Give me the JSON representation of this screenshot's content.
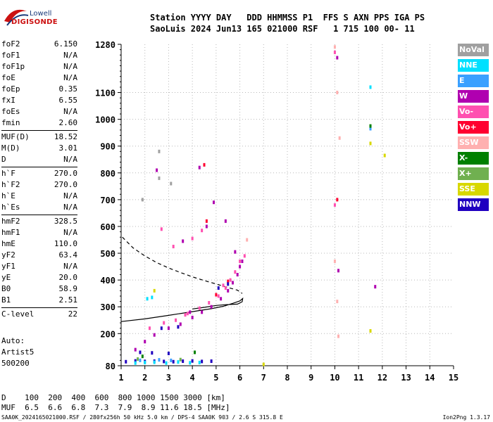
{
  "logo": {
    "text_top": "Lowell",
    "text_bottom": "DIGISONDE"
  },
  "header": {
    "line1": "Station YYYY DAY   DDD HHMMSS P1  FFS S AXN PPS IGA PS",
    "line2": "SaoLuis 2024 Jun13 165 021000 RSF   1 715 100 00- 11"
  },
  "params": [
    {
      "name": "foF2",
      "value": "6.150"
    },
    {
      "name": "foF1",
      "value": "N/A"
    },
    {
      "name": "foF1p",
      "value": "N/A"
    },
    {
      "name": "foE",
      "value": "N/A"
    },
    {
      "name": "foEp",
      "value": "0.35"
    },
    {
      "name": "fxI",
      "value": "6.55"
    },
    {
      "name": "foEs",
      "value": "N/A"
    },
    {
      "name": "fmin",
      "value": "2.60"
    },
    {
      "name": "MUF(D)",
      "value": "18.52"
    },
    {
      "name": "M(D)",
      "value": "3.01"
    },
    {
      "name": "D",
      "value": "N/A"
    },
    {
      "name": "h`F",
      "value": "270.0"
    },
    {
      "name": "h`F2",
      "value": "270.0"
    },
    {
      "name": "h`E",
      "value": "N/A"
    },
    {
      "name": "h`Es",
      "value": "N/A"
    },
    {
      "name": "hmF2",
      "value": "328.5"
    },
    {
      "name": "hmF1",
      "value": "N/A"
    },
    {
      "name": "hmE",
      "value": "110.0"
    },
    {
      "name": "yF2",
      "value": "63.4"
    },
    {
      "name": "yF1",
      "value": "N/A"
    },
    {
      "name": "yE",
      "value": "20.0"
    },
    {
      "name": "B0",
      "value": "58.9"
    },
    {
      "name": "B1",
      "value": "2.51"
    },
    {
      "name": "C-level",
      "value": "22"
    }
  ],
  "auto": {
    "label": "Auto:",
    "name": "Artist5",
    "version": "500200"
  },
  "legend": [
    {
      "label": "NoVal",
      "color": "#a0a0a0"
    },
    {
      "label": "NNE",
      "color": "#00e0ff"
    },
    {
      "label": "E",
      "color": "#3aa0ff"
    },
    {
      "label": "W",
      "color": "#b000b0"
    },
    {
      "label": "Vo-",
      "color": "#ff50b0"
    },
    {
      "label": "Vo+",
      "color": "#ff0030"
    },
    {
      "label": "SSW",
      "color": "#ffb0b0"
    },
    {
      "label": "X-",
      "color": "#008000"
    },
    {
      "label": "X+",
      "color": "#70b050"
    },
    {
      "label": "SSE",
      "color": "#d8d800"
    },
    {
      "label": "NNW",
      "color": "#2000c0"
    }
  ],
  "bottom": {
    "d_line": "D    100  200  400  600  800 1000 1500 3000 [km]",
    "muf_line": "MUF  6.5  6.6  6.8  7.3  7.9  8.9 11.6 18.5 [MHz]",
    "footer": "SAA0K_2024165021000.RSF / 280fx256h 50 kHz 5.0 km / DPS-4 SAA0K 903 / 2.6 S 315.8 E",
    "version": "Ion2Png 1.3.17"
  },
  "chart_data": {
    "type": "scatter",
    "title": "",
    "xlabel": "",
    "ylabel": "",
    "xlim": [
      1,
      15
    ],
    "ylim": [
      80,
      1280
    ],
    "x_ticks": [
      "1",
      "2",
      "3",
      "4",
      "5",
      "6",
      "7",
      "8",
      "9",
      "10",
      "11",
      "12",
      "13",
      "14",
      "15"
    ],
    "y_ticks": [
      "80",
      "200",
      "300",
      "400",
      "500",
      "600",
      "700",
      "800",
      "900",
      "1000",
      "1100",
      "1280"
    ],
    "grid": "dashed",
    "series": [
      {
        "name": "W",
        "color": "#b000b0",
        "points": [
          [
            2.0,
            170
          ],
          [
            2.4,
            195
          ],
          [
            3.0,
            220
          ],
          [
            3.5,
            235
          ],
          [
            4.0,
            260
          ],
          [
            4.4,
            280
          ],
          [
            4.8,
            300
          ],
          [
            5.2,
            330
          ],
          [
            5.5,
            360
          ],
          [
            5.7,
            390
          ],
          [
            5.9,
            420
          ],
          [
            6.0,
            450
          ],
          [
            5.4,
            620
          ],
          [
            4.6,
            600
          ],
          [
            3.6,
            545
          ],
          [
            2.5,
            810
          ],
          [
            4.3,
            820
          ],
          [
            5.8,
            505
          ],
          [
            10.1,
            1230
          ],
          [
            10.15,
            435
          ],
          [
            11.7,
            375
          ],
          [
            1.6,
            140
          ],
          [
            4.9,
            690
          ],
          [
            3.9,
            280
          ],
          [
            6.1,
            470
          ]
        ]
      },
      {
        "name": "Vo-",
        "color": "#ff50b0",
        "points": [
          [
            2.2,
            220
          ],
          [
            2.8,
            240
          ],
          [
            3.3,
            250
          ],
          [
            3.8,
            275
          ],
          [
            4.3,
            295
          ],
          [
            4.7,
            315
          ],
          [
            5.1,
            340
          ],
          [
            5.4,
            370
          ],
          [
            5.6,
            400
          ],
          [
            5.8,
            430
          ],
          [
            6.0,
            470
          ],
          [
            4.0,
            555
          ],
          [
            3.2,
            525
          ],
          [
            2.7,
            590
          ],
          [
            4.4,
            585
          ],
          [
            10.0,
            1250
          ],
          [
            10.0,
            680
          ],
          [
            6.2,
            490
          ],
          [
            3.7,
            270
          ],
          [
            5.3,
            380
          ]
        ]
      },
      {
        "name": "Vo+",
        "color": "#ff0030",
        "points": [
          [
            4.5,
            830
          ],
          [
            4.6,
            620
          ],
          [
            5.0,
            345
          ],
          [
            5.5,
            395
          ],
          [
            10.1,
            700
          ]
        ]
      },
      {
        "name": "NNW",
        "color": "#2000c0",
        "points": [
          [
            1.2,
            95
          ],
          [
            1.6,
            98
          ],
          [
            2.0,
            96
          ],
          [
            2.4,
            97
          ],
          [
            2.8,
            96
          ],
          [
            3.2,
            95
          ],
          [
            3.6,
            97
          ],
          [
            4.0,
            98
          ],
          [
            4.4,
            96
          ],
          [
            4.8,
            97
          ],
          [
            1.8,
            130
          ],
          [
            2.3,
            128
          ],
          [
            3.0,
            126
          ],
          [
            2.7,
            220
          ],
          [
            3.4,
            225
          ],
          [
            5.1,
            370
          ],
          [
            5.5,
            385
          ]
        ]
      },
      {
        "name": "NNE",
        "color": "#00e0ff",
        "points": [
          [
            1.6,
            90
          ],
          [
            2.0,
            92
          ],
          [
            2.4,
            93
          ],
          [
            2.9,
            90
          ],
          [
            3.4,
            94
          ],
          [
            3.9,
            91
          ],
          [
            4.3,
            92
          ],
          [
            2.1,
            330
          ],
          [
            2.3,
            335
          ],
          [
            11.5,
            1120
          ]
        ]
      },
      {
        "name": "E",
        "color": "#3aa0ff",
        "points": [
          [
            1.8,
            100
          ],
          [
            2.6,
            102
          ],
          [
            3.1,
            100
          ],
          [
            11.5,
            965
          ]
        ]
      },
      {
        "name": "SSW",
        "color": "#ffb0b0",
        "points": [
          [
            10.0,
            1270
          ],
          [
            10.0,
            470
          ],
          [
            10.1,
            1100
          ],
          [
            10.2,
            930
          ],
          [
            6.3,
            550
          ],
          [
            10.15,
            190
          ],
          [
            10.1,
            320
          ]
        ]
      },
      {
        "name": "X-",
        "color": "#008000",
        "points": [
          [
            11.5,
            975
          ],
          [
            4.1,
            130
          ],
          [
            1.9,
            115
          ]
        ]
      },
      {
        "name": "X+",
        "color": "#70b050",
        "points": [
          [
            1.7,
            105
          ],
          [
            3.5,
            103
          ]
        ]
      },
      {
        "name": "SSE",
        "color": "#d8d800",
        "points": [
          [
            11.5,
            210
          ],
          [
            11.5,
            910
          ],
          [
            12.1,
            865
          ],
          [
            7.0,
            85
          ],
          [
            2.4,
            360
          ]
        ]
      },
      {
        "name": "NoVal",
        "color": "#a0a0a0",
        "points": [
          [
            2.6,
            780
          ],
          [
            3.1,
            760
          ],
          [
            1.9,
            700
          ],
          [
            2.6,
            880
          ]
        ]
      }
    ],
    "curves": [
      {
        "style": "solid",
        "points": [
          [
            1,
            245
          ],
          [
            2,
            255
          ],
          [
            3,
            268
          ],
          [
            4,
            282
          ],
          [
            4.8,
            293
          ],
          [
            5.3,
            302
          ],
          [
            5.7,
            313
          ],
          [
            6.0,
            322
          ],
          [
            6.12,
            331
          ],
          [
            6.1,
            319
          ],
          [
            5.9,
            310
          ],
          [
            5.4,
            308
          ],
          [
            5.0,
            305
          ],
          [
            4.5,
            298
          ],
          [
            4.0,
            292
          ]
        ]
      },
      {
        "style": "dashed",
        "points": [
          [
            1.05,
            560
          ],
          [
            1.5,
            520
          ],
          [
            2.0,
            490
          ],
          [
            2.5,
            465
          ],
          [
            3.0,
            445
          ],
          [
            3.5,
            428
          ],
          [
            4.0,
            412
          ],
          [
            4.5,
            398
          ],
          [
            5.0,
            385
          ],
          [
            5.5,
            372
          ],
          [
            5.9,
            362
          ],
          [
            6.1,
            350
          ]
        ]
      }
    ]
  }
}
